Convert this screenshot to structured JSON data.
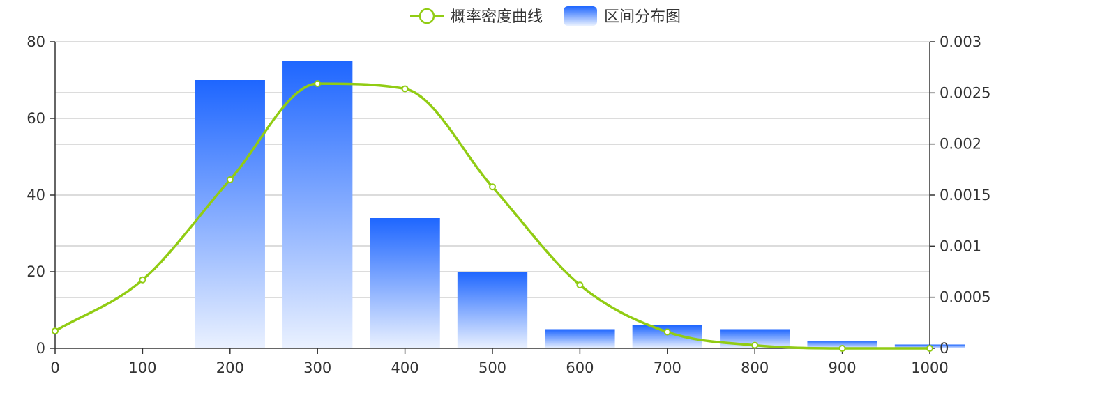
{
  "chart_data": {
    "type": "bar",
    "legend": {
      "position": "top-center",
      "items": [
        {
          "key": "curve",
          "label": "概率密度曲线"
        },
        {
          "key": "bars",
          "label": "区间分布图"
        }
      ]
    },
    "x_axis": {
      "min": 0,
      "max": 1000,
      "ticks": [
        0,
        100,
        200,
        300,
        400,
        500,
        600,
        700,
        800,
        900,
        1000
      ]
    },
    "y_axis_left": {
      "min": 0,
      "max": 80,
      "ticks": [
        0,
        20,
        40,
        60,
        80
      ]
    },
    "y_axis_right": {
      "min": 0,
      "max": 0.003,
      "ticks": [
        {
          "value": 0,
          "label": "0"
        },
        {
          "value": 0.0005,
          "label": "0.0005"
        },
        {
          "value": 0.001,
          "label": "0.001"
        },
        {
          "value": 0.0015,
          "label": "0.0015"
        },
        {
          "value": 0.002,
          "label": "0.002"
        },
        {
          "value": 0.0025,
          "label": "0.0025"
        },
        {
          "value": 0.003,
          "label": "0.003"
        }
      ]
    },
    "grid": true,
    "bars": {
      "name": "区间分布图",
      "axis": "left",
      "items": [
        {
          "x0": 160,
          "x1": 240,
          "value": 70
        },
        {
          "x0": 260,
          "x1": 340,
          "value": 75
        },
        {
          "x0": 360,
          "x1": 440,
          "value": 34
        },
        {
          "x0": 460,
          "x1": 540,
          "value": 20
        },
        {
          "x0": 560,
          "x1": 640,
          "value": 5
        },
        {
          "x0": 660,
          "x1": 740,
          "value": 6
        },
        {
          "x0": 760,
          "x1": 840,
          "value": 5
        },
        {
          "x0": 860,
          "x1": 940,
          "value": 2
        },
        {
          "x0": 960,
          "x1": 1040,
          "value": 1
        }
      ]
    },
    "curve": {
      "name": "概率密度曲线",
      "axis": "right",
      "points": [
        {
          "x": 0,
          "y": 0.00017
        },
        {
          "x": 100,
          "y": 0.00067
        },
        {
          "x": 200,
          "y": 0.00165
        },
        {
          "x": 300,
          "y": 0.00259
        },
        {
          "x": 400,
          "y": 0.00254
        },
        {
          "x": 500,
          "y": 0.00158
        },
        {
          "x": 600,
          "y": 0.00062
        },
        {
          "x": 700,
          "y": 0.00016
        },
        {
          "x": 800,
          "y": 3e-05
        },
        {
          "x": 900,
          "y": 0.0
        },
        {
          "x": 1000,
          "y": 0.0
        }
      ]
    },
    "colors": {
      "bar_top": "#1e66ff",
      "bar_bottom": "#eaf1ff",
      "curve": "#91cc13",
      "point_fill": "#ffffff",
      "grid": "#c8c8c8",
      "axis": "#333333",
      "text": "#333333"
    }
  }
}
